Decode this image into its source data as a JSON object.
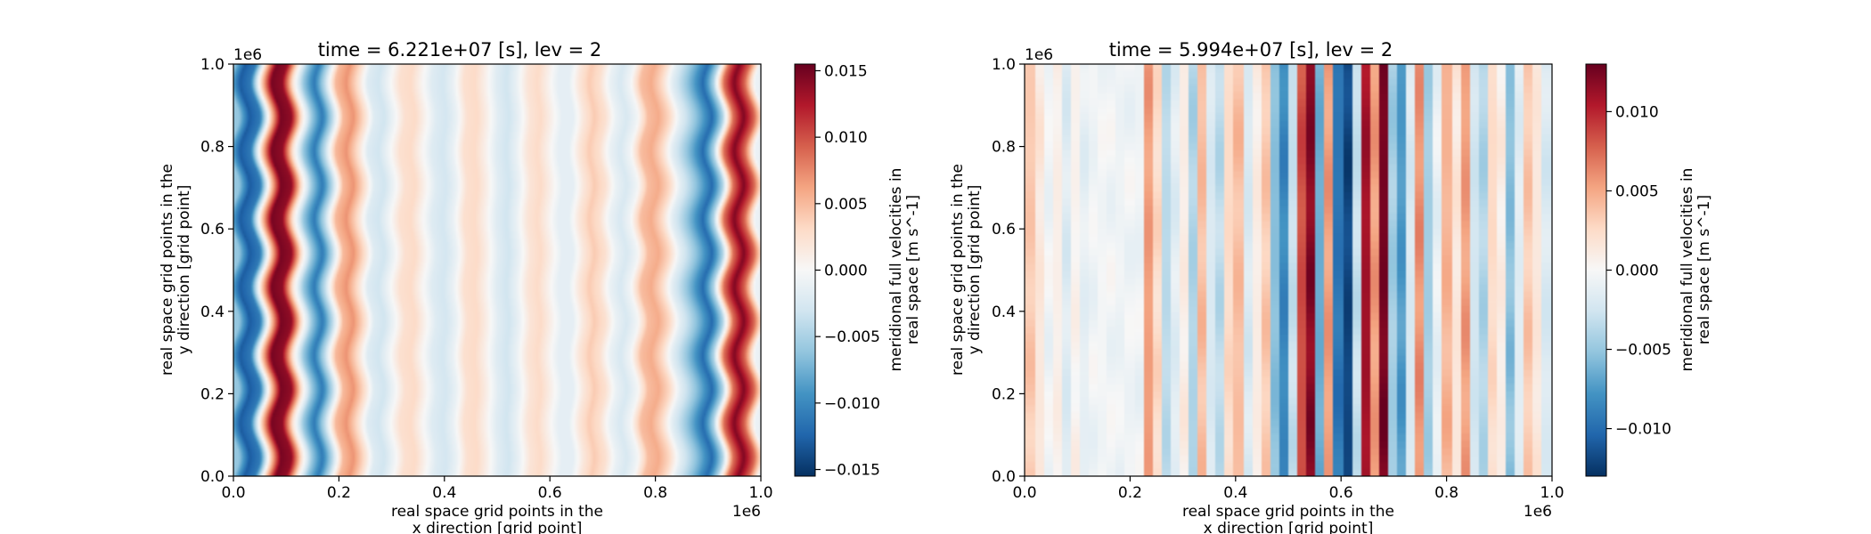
{
  "chart_data": [
    {
      "type": "heatmap",
      "title": "time = 6.221e+07 [s], lev = 2",
      "xlabel": [
        "real space grid points in the",
        "x direction [grid point]"
      ],
      "ylabel": [
        "real space grid points in the",
        "y direction [grid point]"
      ],
      "x_offset": "1e6",
      "y_offset": "1e6",
      "xlim": [
        0,
        1
      ],
      "ylim": [
        0,
        1
      ],
      "xticks": [
        "0.0",
        "0.2",
        "0.4",
        "0.6",
        "0.8",
        "1.0"
      ],
      "yticks": [
        "0.0",
        "0.2",
        "0.4",
        "0.6",
        "0.8",
        "1.0"
      ],
      "colormap": "RdBu_r",
      "colorbar": {
        "label": [
          "meridional full velocities in",
          "real space [m s^-1]"
        ],
        "vmin": -0.0155,
        "vmax": 0.0155,
        "ticks": [
          -0.015,
          -0.01,
          -0.005,
          0.0,
          0.005,
          0.01,
          0.015
        ],
        "tick_labels": [
          "−0.015",
          "−0.010",
          "−0.005",
          "0.000",
          "0.005",
          "0.010",
          "0.015"
        ]
      },
      "stripe_x": [
        0.0,
        0.02,
        0.04,
        0.06,
        0.08,
        0.1,
        0.12,
        0.14,
        0.16,
        0.18,
        0.2,
        0.22,
        0.24,
        0.26,
        0.28,
        0.3,
        0.32,
        0.34,
        0.36,
        0.38,
        0.4,
        0.42,
        0.44,
        0.46,
        0.48,
        0.5,
        0.52,
        0.54,
        0.56,
        0.58,
        0.6,
        0.62,
        0.64,
        0.66,
        0.68,
        0.7,
        0.72,
        0.74,
        0.76,
        0.78,
        0.8,
        0.82,
        0.84,
        0.86,
        0.88,
        0.9,
        0.92,
        0.94,
        0.96,
        0.98,
        1.0
      ],
      "stripe_values": [
        -0.006,
        -0.013,
        -0.011,
        0.003,
        0.0148,
        0.0138,
        0.002,
        -0.006,
        -0.011,
        -0.004,
        0.005,
        0.007,
        0.003,
        -0.002,
        -0.003,
        -0.0005,
        0.0025,
        0.003,
        0.0005,
        -0.002,
        -0.0028,
        -0.001,
        0.0025,
        0.003,
        0.0008,
        -0.0018,
        -0.003,
        -0.001,
        0.002,
        0.003,
        0.0008,
        -0.0015,
        -0.0015,
        0.0018,
        0.004,
        0.0025,
        -0.001,
        -0.0025,
        -0.0005,
        0.0048,
        0.0058,
        0.0032,
        -0.0015,
        -0.0045,
        -0.008,
        -0.012,
        -0.005,
        0.0085,
        0.0145,
        0.009,
        -0.001
      ],
      "wave_amplitude": 0.009,
      "wave_cycles": 6
    },
    {
      "type": "heatmap",
      "title": "time = 5.994e+07 [s], lev = 2",
      "xlabel": [
        "real space grid points in the",
        "x direction [grid point]"
      ],
      "ylabel": [
        "real space grid points in the",
        "y direction [grid point]"
      ],
      "x_offset": "1e6",
      "y_offset": "1e6",
      "xlim": [
        0,
        1
      ],
      "ylim": [
        0,
        1
      ],
      "xticks": [
        "0.0",
        "0.2",
        "0.4",
        "0.6",
        "0.8",
        "1.0"
      ],
      "yticks": [
        "0.0",
        "0.2",
        "0.4",
        "0.6",
        "0.8",
        "1.0"
      ],
      "colormap": "RdBu_r",
      "colorbar": {
        "label": [
          "meridional full velocities in",
          "real space [m s^-1]"
        ],
        "vmin": -0.013,
        "vmax": 0.013,
        "ticks": [
          -0.01,
          -0.005,
          0.0,
          0.005,
          0.01
        ],
        "tick_labels": [
          "−0.010",
          "−0.005",
          "0.000",
          "0.005",
          "0.010"
        ]
      },
      "stripe_values": [
        0.0035,
        0.0015,
        -0.0005,
        0.0008,
        -0.0018,
        0.0005,
        -0.0012,
        -0.0005,
        -0.0003,
        -0.0004,
        -0.0006,
        -0.0005,
        -0.0006,
        0.0055,
        0.0025,
        -0.0035,
        -0.0015,
        0.001,
        -0.004,
        0.004,
        -0.002,
        -0.0035,
        0.0025,
        0.004,
        -0.002,
        0.001,
        0.0035,
        -0.0055,
        -0.0085,
        -0.003,
        0.0085,
        0.012,
        -0.0065,
        0.0055,
        -0.0095,
        -0.012,
        -0.003,
        0.011,
        0.0055,
        0.0125,
        -0.0045,
        -0.0075,
        -0.002,
        0.006,
        -0.0045,
        -0.001,
        0.0045,
        0.0015,
        0.0055,
        -0.0025,
        -0.004,
        0.0025,
        0.001,
        -0.0055,
        -0.0015,
        0.0035,
        0.0015,
        -0.002
      ],
      "row_noise": 0.0008
    }
  ]
}
